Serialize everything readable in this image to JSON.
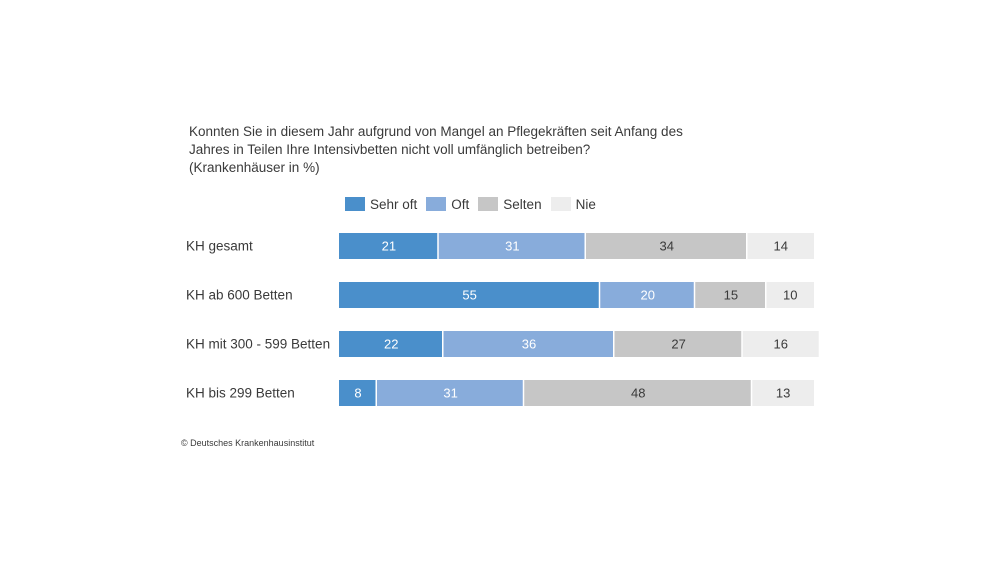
{
  "chart_data": {
    "type": "bar",
    "orientation": "horizontal",
    "stacked": true,
    "title_lines": [
      "Konnten Sie in diesem Jahr aufgrund von Mangel an Pflegekräften seit Anfang des",
      "Jahres in Teilen Ihre Intensivbetten nicht voll umfänglich betreiben?",
      "(Krankenhäuser in %)"
    ],
    "categories": [
      "KH gesamt",
      "KH ab 600 Betten",
      "KH mit 300 - 599 Betten",
      "KH bis 299 Betten"
    ],
    "series": [
      {
        "name": "Sehr oft",
        "color": "#4a8fcb",
        "label_color": "#ffffff",
        "values": [
          21,
          55,
          22,
          8
        ]
      },
      {
        "name": "Oft",
        "color": "#88acdb",
        "label_color": "#ffffff",
        "values": [
          31,
          20,
          36,
          31
        ]
      },
      {
        "name": "Selten",
        "color": "#c6c6c6",
        "label_color": "#3a3a3a",
        "values": [
          34,
          15,
          27,
          48
        ]
      },
      {
        "name": "Nie",
        "color": "#ededed",
        "label_color": "#3a3a3a",
        "values": [
          14,
          10,
          16,
          13
        ]
      }
    ],
    "xlim": [
      0,
      100
    ],
    "grid": false,
    "legend_position": "top"
  },
  "source": "© Deutsches Krankenhausinstitut"
}
